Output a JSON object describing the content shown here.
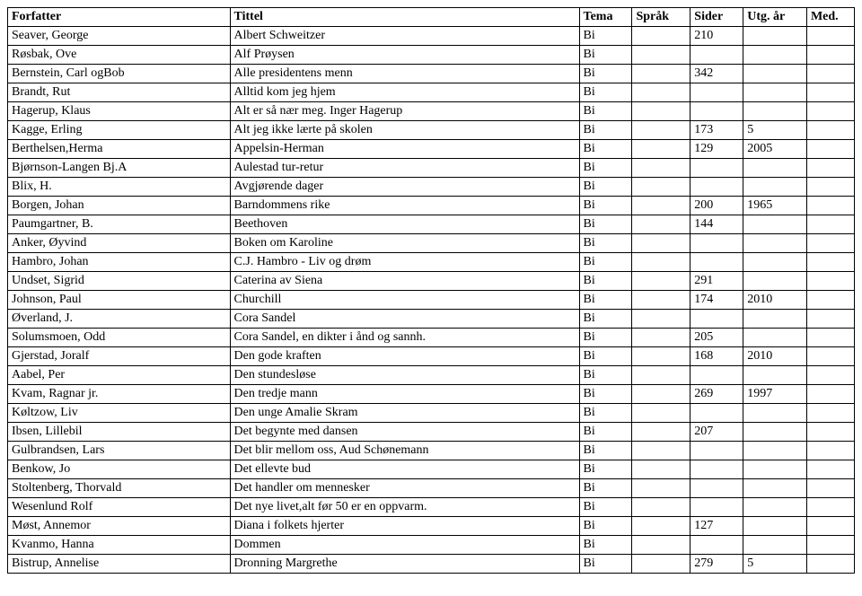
{
  "columns": [
    "Forfatter",
    "Tittel",
    "Tema",
    "Språk",
    "Sider",
    "Utg. år",
    "Med."
  ],
  "rows": [
    [
      "Seaver, George",
      "Albert Schweitzer",
      "Bi",
      "",
      "210",
      "",
      ""
    ],
    [
      "Røsbak, Ove",
      "Alf Prøysen",
      "Bi",
      "",
      "",
      "",
      ""
    ],
    [
      "Bernstein, Carl ogBob",
      "Alle presidentens menn",
      "Bi",
      "",
      "342",
      "",
      ""
    ],
    [
      "Brandt, Rut",
      "Alltid kom jeg hjem",
      "Bi",
      "",
      "",
      "",
      ""
    ],
    [
      "Hagerup, Klaus",
      "Alt er så nær meg. Inger Hagerup",
      "Bi",
      "",
      "",
      "",
      ""
    ],
    [
      "Kagge, Erling",
      "Alt jeg ikke lærte på  skolen",
      "Bi",
      "",
      "173",
      "5",
      ""
    ],
    [
      "Berthelsen,Herma",
      "Appelsin-Herman",
      "Bi",
      "",
      "129",
      "2005",
      ""
    ],
    [
      "Bjørnson-Langen Bj.A",
      "Aulestad tur-retur",
      "Bi",
      "",
      "",
      "",
      ""
    ],
    [
      "Blix, H.",
      "Avgjørende dager",
      "Bi",
      "",
      "",
      "",
      ""
    ],
    [
      "Borgen, Johan",
      "Barndommens rike",
      "Bi",
      "",
      "200",
      "1965",
      ""
    ],
    [
      "Paumgartner, B.",
      "Beethoven",
      "Bi",
      "",
      "144",
      "",
      ""
    ],
    [
      "Anker, Øyvind",
      "Boken om Karoline",
      "Bi",
      "",
      "",
      "",
      ""
    ],
    [
      "Hambro, Johan",
      "C.J. Hambro -  Liv og drøm",
      "Bi",
      "",
      "",
      "",
      ""
    ],
    [
      "Undset, Sigrid",
      "Caterina av Siena",
      "Bi",
      "",
      "291",
      "",
      ""
    ],
    [
      "Johnson, Paul",
      "Churchill",
      "Bi",
      "",
      "174",
      "2010",
      ""
    ],
    [
      "Øverland, J.",
      "Cora Sandel",
      "Bi",
      "",
      "",
      "",
      ""
    ],
    [
      "Solumsmoen,  Odd",
      "Cora Sandel, en dikter i ånd og sannh.",
      "Bi",
      "",
      "205",
      "",
      ""
    ],
    [
      "Gjerstad, Joralf",
      "Den gode kraften",
      "Bi",
      "",
      "168",
      "2010",
      ""
    ],
    [
      "Aabel, Per",
      "Den stundesløse",
      "Bi",
      "",
      "",
      "",
      ""
    ],
    [
      "Kvam, Ragnar jr.",
      "Den tredje mann",
      "Bi",
      "",
      "269",
      "1997",
      ""
    ],
    [
      "Køltzow, Liv",
      "Den unge Amalie Skram",
      "Bi",
      "",
      "",
      "",
      ""
    ],
    [
      "Ibsen, Lillebil",
      "Det begynte med dansen",
      "Bi",
      "",
      "207",
      "",
      ""
    ],
    [
      "Gulbrandsen, Lars",
      "Det blir mellom oss, Aud Schønemann",
      "Bi",
      "",
      "",
      "",
      ""
    ],
    [
      "Benkow, Jo",
      "Det ellevte bud",
      "Bi",
      "",
      "",
      "",
      ""
    ],
    [
      "Stoltenberg, Thorvald",
      "Det handler om mennesker",
      "Bi",
      "",
      "",
      "",
      ""
    ],
    [
      "Wesenlund Rolf",
      "Det nye livet,alt før 50 er en oppvarm.",
      "Bi",
      "",
      "",
      "",
      ""
    ],
    [
      "Møst, Annemor",
      "Diana i folkets hjerter",
      "Bi",
      "",
      "127",
      "",
      ""
    ],
    [
      "Kvanmo, Hanna",
      "Dommen",
      "Bi",
      "",
      "",
      "",
      ""
    ],
    [
      "Bistrup, Annelise",
      "Dronning Margrethe",
      "Bi",
      "",
      "279",
      "5",
      ""
    ]
  ]
}
